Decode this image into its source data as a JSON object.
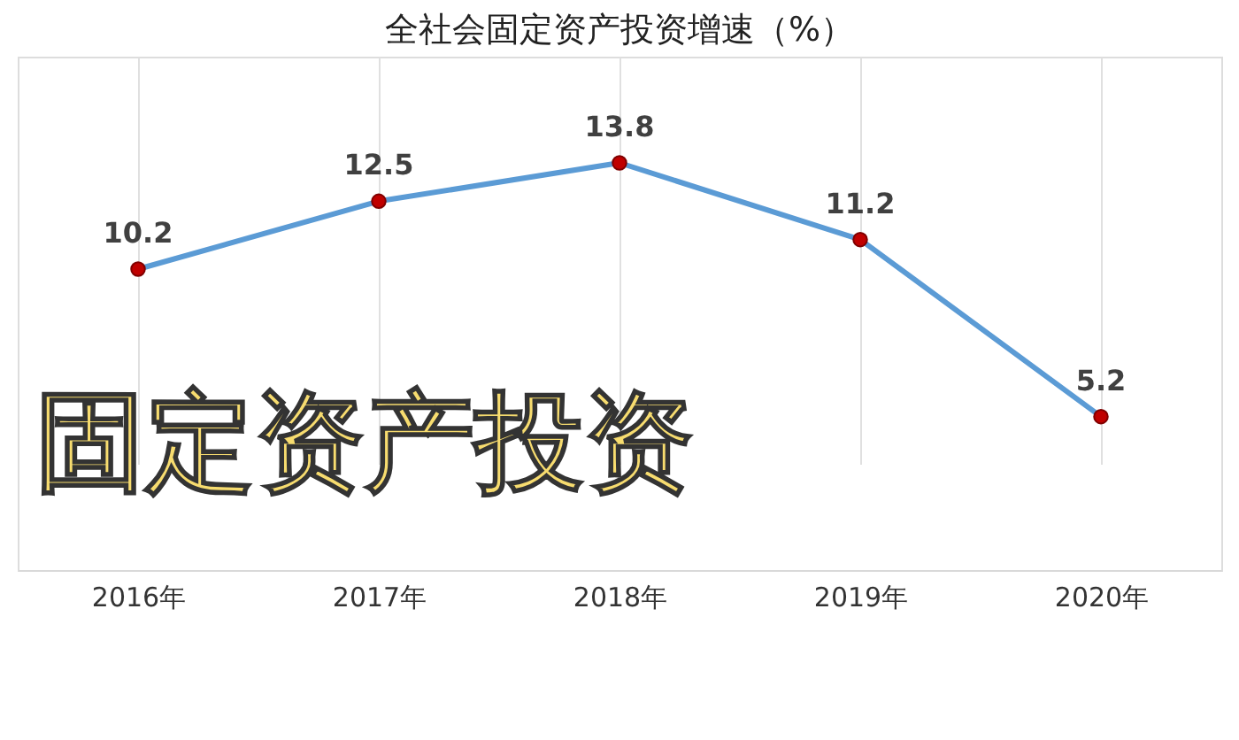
{
  "chart_data": {
    "type": "line",
    "title": "全社会固定资产投资增速（%）",
    "categories": [
      "2016年",
      "2017年",
      "2018年",
      "2019年",
      "2020年"
    ],
    "series": [
      {
        "color": "#5b9bd5",
        "values": [
          10.2,
          12.5,
          13.8,
          11.2,
          5.2
        ]
      }
    ],
    "data_labels": true,
    "grid": "x",
    "marker": "circle",
    "line_style": "solid",
    "annotations": [
      "固定资产投资"
    ]
  }
}
